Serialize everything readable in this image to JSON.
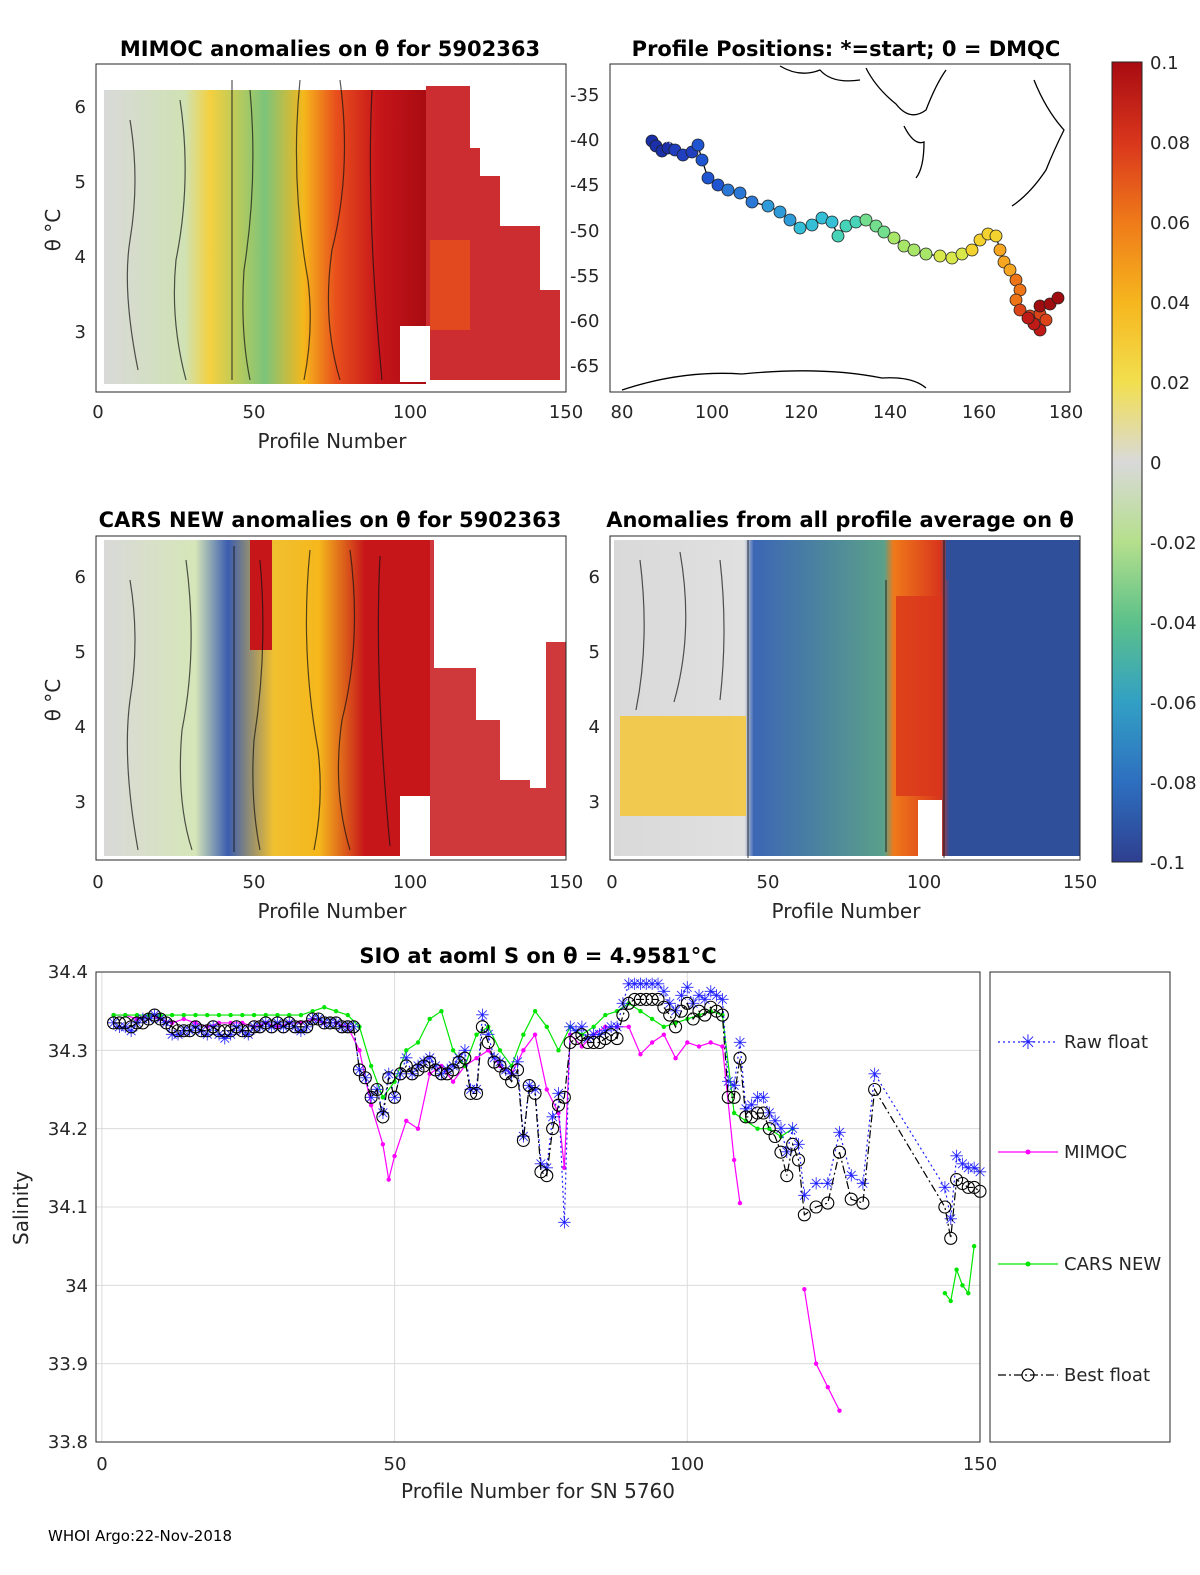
{
  "figure": {
    "footer": "WHOI Argo:22-Nov-2018"
  },
  "panels": {
    "mimoc": {
      "title": "MIMOC anomalies on θ  for 5902363",
      "xlabel": "Profile Number",
      "ylabel": "θ °C",
      "xticks": [
        "0",
        "50",
        "100",
        "150"
      ],
      "yticks": [
        "3",
        "4",
        "5",
        "6"
      ],
      "xlim": [
        0,
        150
      ],
      "ylim": [
        2.2,
        6.5
      ]
    },
    "positions": {
      "title": "Profile Positions: *=start; 0 = DMQC",
      "xticks": [
        "80",
        "100",
        "120",
        "140",
        "160",
        "180"
      ],
      "yticks": [
        "-35",
        "-40",
        "-45",
        "-50",
        "-55",
        "-60",
        "-65"
      ],
      "xlim": [
        78,
        182
      ],
      "ylim": [
        -68,
        -32
      ]
    },
    "cars": {
      "title": "CARS NEW anomalies on θ for 5902363",
      "xlabel": "Profile Number",
      "ylabel": "θ °C",
      "xticks": [
        "0",
        "50",
        "100",
        "150"
      ],
      "yticks": [
        "3",
        "4",
        "5",
        "6"
      ],
      "xlim": [
        0,
        150
      ],
      "ylim": [
        2.2,
        6.5
      ]
    },
    "allavg": {
      "title": "Anomalies from all profile average on θ",
      "xlabel": "Profile Number",
      "xticks": [
        "0",
        "50",
        "100",
        "150"
      ],
      "yticks": [
        "3",
        "4",
        "5",
        "6"
      ],
      "xlim": [
        0,
        150
      ],
      "ylim": [
        2.2,
        6.5
      ]
    },
    "colorbar": {
      "ticks": [
        "0.1",
        "0.08",
        "0.06",
        "0.04",
        "0.02",
        "0",
        "-0.02",
        "-0.04",
        "-0.06",
        "-0.08",
        "-0.1"
      ],
      "colors": [
        "#2f3f8f",
        "#2e6fc0",
        "#32a0c4",
        "#5cc18a",
        "#b5df8c",
        "#d9d9d9",
        "#f2df4e",
        "#f6b61e",
        "#ef7a1a",
        "#d9361c",
        "#a80b12"
      ]
    }
  },
  "chart_data": {
    "type": "line",
    "title": "SIO at aoml S on θ = 4.9581°C",
    "xlabel": "Profile Number for SN 5760",
    "ylabel": "Salinity",
    "xlim": [
      -1,
      150
    ],
    "ylim": [
      33.8,
      34.4
    ],
    "xticks": [
      "0",
      "50",
      "100",
      "150"
    ],
    "yticks": [
      "34.4",
      "34.3",
      "34.2",
      "34.1",
      "34",
      "33.9",
      "33.8"
    ],
    "series": [
      {
        "name": "Raw float",
        "color": "#1f1fff",
        "marker": "star",
        "x": [
          2,
          3,
          4,
          5,
          6,
          7,
          8,
          9,
          10,
          11,
          12,
          13,
          14,
          15,
          16,
          17,
          18,
          19,
          20,
          21,
          22,
          23,
          24,
          25,
          26,
          27,
          28,
          29,
          30,
          31,
          32,
          33,
          34,
          35,
          36,
          37,
          38,
          39,
          40,
          41,
          42,
          43,
          44,
          45,
          46,
          47,
          48,
          49,
          50,
          51,
          52,
          53,
          54,
          55,
          56,
          57,
          58,
          59,
          60,
          61,
          62,
          63,
          64,
          65,
          66,
          67,
          68,
          69,
          70,
          71,
          72,
          73,
          74,
          75,
          76,
          77,
          78,
          79,
          80,
          81,
          82,
          83,
          84,
          85,
          86,
          87,
          88,
          89,
          90,
          91,
          92,
          93,
          94,
          95,
          96,
          97,
          98,
          99,
          100,
          101,
          102,
          103,
          104,
          105,
          106,
          107,
          108,
          109,
          110,
          111,
          112,
          113,
          114,
          115,
          116,
          117,
          118,
          119,
          120,
          122,
          124,
          126,
          128,
          130,
          132,
          144,
          145,
          146,
          147,
          148,
          149,
          150
        ],
        "values": [
          34.335,
          34.33,
          34.33,
          34.325,
          34.335,
          34.34,
          34.34,
          34.345,
          34.34,
          34.335,
          34.32,
          34.32,
          34.325,
          34.325,
          34.33,
          34.325,
          34.32,
          34.33,
          34.32,
          34.315,
          34.32,
          34.33,
          34.325,
          34.32,
          34.33,
          34.33,
          34.335,
          34.33,
          34.335,
          34.33,
          34.335,
          34.33,
          34.325,
          34.33,
          34.34,
          34.34,
          34.335,
          34.335,
          34.335,
          34.33,
          34.33,
          34.33,
          34.275,
          34.265,
          34.24,
          34.25,
          34.22,
          34.27,
          34.24,
          34.27,
          34.29,
          34.27,
          34.28,
          34.285,
          34.29,
          34.28,
          34.27,
          34.275,
          34.28,
          34.29,
          34.3,
          34.25,
          34.25,
          34.345,
          34.32,
          34.29,
          34.285,
          34.275,
          34.27,
          34.285,
          34.19,
          34.255,
          34.25,
          34.155,
          34.15,
          34.215,
          34.245,
          34.08,
          34.33,
          34.325,
          34.33,
          34.315,
          34.32,
          34.32,
          34.325,
          34.33,
          34.33,
          34.36,
          34.385,
          34.385,
          34.385,
          34.385,
          34.385,
          34.385,
          34.375,
          34.36,
          34.35,
          34.37,
          34.38,
          34.36,
          34.37,
          34.365,
          34.375,
          34.37,
          34.365,
          34.26,
          34.255,
          34.31,
          34.225,
          34.23,
          34.24,
          34.24,
          34.22,
          34.21,
          34.2,
          34.17,
          34.2,
          34.18,
          34.115,
          34.13,
          34.13,
          34.195,
          34.14,
          34.13,
          34.27,
          34.125,
          34.085,
          34.165,
          34.155,
          34.15,
          34.15,
          34.145
        ],
        "note": "approximate"
      },
      {
        "name": "MIMOC",
        "color": "#ff00ff",
        "marker": "dot",
        "x": [
          2,
          4,
          6,
          8,
          10,
          12,
          14,
          16,
          18,
          20,
          22,
          24,
          26,
          28,
          30,
          32,
          34,
          36,
          38,
          40,
          42,
          44,
          46,
          48,
          49,
          50,
          52,
          54,
          56,
          58,
          60,
          62,
          64,
          66,
          68,
          70,
          72,
          74,
          76,
          78,
          79,
          80,
          82,
          84,
          86,
          88,
          90,
          92,
          94,
          96,
          98,
          100,
          102,
          104,
          106,
          108,
          109,
          120,
          122,
          124,
          126
        ],
        "values": [
          34.345,
          34.345,
          34.34,
          34.345,
          34.34,
          34.335,
          34.34,
          34.335,
          34.33,
          34.335,
          34.335,
          34.335,
          34.33,
          34.335,
          34.33,
          34.335,
          34.335,
          34.34,
          34.335,
          34.335,
          34.33,
          34.3,
          34.23,
          34.18,
          34.135,
          34.165,
          34.21,
          34.2,
          34.27,
          34.28,
          34.26,
          34.28,
          34.29,
          34.3,
          34.28,
          34.27,
          34.3,
          34.32,
          34.25,
          34.22,
          34.15,
          34.32,
          34.305,
          34.32,
          34.33,
          34.33,
          34.33,
          34.295,
          34.31,
          34.32,
          34.29,
          34.31,
          34.305,
          34.31,
          34.305,
          34.16,
          34.105,
          33.995,
          33.9,
          33.87,
          33.84
        ],
        "note": "approximate"
      },
      {
        "name": "CARS NEW",
        "color": "#00e600",
        "marker": "dot",
        "x": [
          2,
          4,
          6,
          8,
          10,
          12,
          14,
          16,
          18,
          20,
          22,
          24,
          26,
          28,
          30,
          32,
          34,
          36,
          38,
          40,
          42,
          44,
          46,
          48,
          50,
          52,
          54,
          56,
          58,
          60,
          62,
          64,
          66,
          68,
          70,
          72,
          74,
          76,
          78,
          80,
          82,
          84,
          86,
          88,
          90,
          92,
          94,
          96,
          98,
          100,
          102,
          104,
          106,
          108,
          110,
          112,
          114,
          116,
          118,
          144,
          145,
          146,
          147,
          148,
          149
        ],
        "values": [
          34.345,
          34.345,
          34.345,
          34.345,
          34.345,
          34.345,
          34.345,
          34.345,
          34.345,
          34.345,
          34.345,
          34.345,
          34.345,
          34.345,
          34.345,
          34.345,
          34.345,
          34.35,
          34.355,
          34.35,
          34.345,
          34.33,
          34.28,
          34.24,
          34.26,
          34.3,
          34.31,
          34.34,
          34.35,
          34.3,
          34.28,
          34.32,
          34.33,
          34.3,
          34.28,
          34.32,
          34.35,
          34.33,
          34.3,
          34.33,
          34.32,
          34.33,
          34.345,
          34.35,
          34.36,
          34.35,
          34.34,
          34.33,
          34.335,
          34.34,
          34.345,
          34.35,
          34.345,
          34.22,
          34.21,
          34.2,
          34.2,
          34.19,
          34.2,
          33.99,
          33.98,
          34.02,
          34.0,
          33.99,
          34.05
        ],
        "note": "approximate"
      },
      {
        "name": "Best float",
        "color": "#000000",
        "marker": "circle",
        "x": [
          2,
          3,
          4,
          5,
          6,
          7,
          8,
          9,
          10,
          11,
          12,
          13,
          14,
          15,
          16,
          17,
          18,
          19,
          20,
          21,
          22,
          23,
          24,
          25,
          26,
          27,
          28,
          29,
          30,
          31,
          32,
          33,
          34,
          35,
          36,
          37,
          38,
          39,
          40,
          41,
          42,
          43,
          44,
          45,
          46,
          47,
          48,
          49,
          50,
          51,
          52,
          53,
          54,
          55,
          56,
          57,
          58,
          59,
          60,
          61,
          62,
          63,
          64,
          65,
          66,
          67,
          68,
          69,
          70,
          71,
          72,
          73,
          74,
          75,
          76,
          77,
          78,
          79,
          80,
          81,
          82,
          83,
          84,
          85,
          86,
          87,
          88,
          89,
          90,
          91,
          92,
          93,
          94,
          95,
          96,
          97,
          98,
          99,
          100,
          101,
          102,
          103,
          104,
          105,
          106,
          107,
          108,
          109,
          110,
          111,
          112,
          113,
          114,
          115,
          116,
          117,
          118,
          119,
          120,
          122,
          124,
          126,
          128,
          130,
          132,
          144,
          145,
          146,
          147,
          148,
          149,
          150
        ],
        "values": [
          34.335,
          34.335,
          34.335,
          34.33,
          34.335,
          34.335,
          34.34,
          34.345,
          34.34,
          34.335,
          34.33,
          34.325,
          34.325,
          34.325,
          34.33,
          34.325,
          34.325,
          34.33,
          34.325,
          34.325,
          34.325,
          34.33,
          34.325,
          34.325,
          34.33,
          34.33,
          34.335,
          34.33,
          34.335,
          34.33,
          34.335,
          34.33,
          34.33,
          34.33,
          34.34,
          34.34,
          34.335,
          34.335,
          34.335,
          34.33,
          34.33,
          34.33,
          34.275,
          34.265,
          34.24,
          34.25,
          34.215,
          34.265,
          34.24,
          34.27,
          34.28,
          34.27,
          34.275,
          34.28,
          34.285,
          34.275,
          34.27,
          34.27,
          34.275,
          34.285,
          34.29,
          34.245,
          34.245,
          34.33,
          34.31,
          34.285,
          34.28,
          34.27,
          34.26,
          34.275,
          34.185,
          34.255,
          34.245,
          34.145,
          34.14,
          34.2,
          34.23,
          34.24,
          34.31,
          34.315,
          34.32,
          34.31,
          34.31,
          34.31,
          34.315,
          34.32,
          34.315,
          34.345,
          34.36,
          34.365,
          34.365,
          34.365,
          34.365,
          34.365,
          34.355,
          34.345,
          34.33,
          34.35,
          34.36,
          34.34,
          34.35,
          34.345,
          34.355,
          34.35,
          34.345,
          34.24,
          34.24,
          34.29,
          34.215,
          34.215,
          34.22,
          34.22,
          34.2,
          34.19,
          34.17,
          34.14,
          34.18,
          34.16,
          34.09,
          34.1,
          34.105,
          34.17,
          34.11,
          34.105,
          34.25,
          34.1,
          34.06,
          34.135,
          34.13,
          34.125,
          34.125,
          34.12
        ],
        "note": "approximate"
      }
    ]
  }
}
